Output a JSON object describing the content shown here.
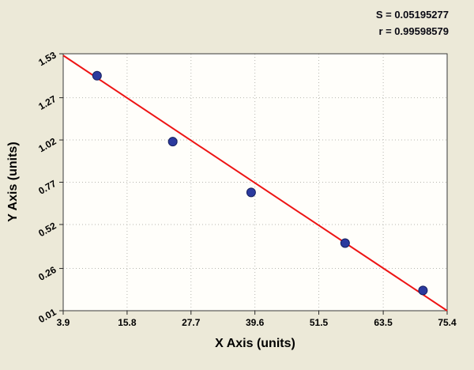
{
  "stats": {
    "s_label": "S = 0.05195277",
    "r_label": "r = 0.99598579"
  },
  "chart_data": {
    "type": "scatter",
    "title": "",
    "xlabel": "X Axis (units)",
    "ylabel": "Y Axis (units)",
    "x": [
      10.2,
      24.3,
      38.9,
      56.4,
      70.9
    ],
    "y": [
      1.4,
      1.01,
      0.71,
      0.41,
      0.13
    ],
    "xlim": [
      3.9,
      75.4
    ],
    "ylim": [
      0.01,
      1.53
    ],
    "xtick_values": [
      3.9,
      15.8,
      27.7,
      39.6,
      51.5,
      63.5,
      75.4
    ],
    "xtick_labels": [
      "3.9",
      "15.8",
      "27.7",
      "39.6",
      "51.5",
      "63.5",
      "75.4"
    ],
    "ytick_values": [
      0.01,
      0.26,
      0.52,
      0.77,
      1.02,
      1.27,
      1.53
    ],
    "ytick_labels": [
      "0.01",
      "0.26",
      "0.52",
      "0.77",
      "1.02",
      "1.27",
      "1.53"
    ],
    "grid": true,
    "plot_bg": "#fffefa",
    "page_bg": "#ece9d8",
    "border_color": "#3a3a3a",
    "grid_color": "#b7b7b0",
    "point_color": "#2b3a9e",
    "point_stroke": "#17205f",
    "trendline": {
      "x1": 3.9,
      "y1": 1.52,
      "x2": 75.4,
      "y2": 0.01,
      "color": "#ee1414"
    },
    "annotations": [
      "S = 0.05195277",
      "r = 0.99598579"
    ]
  }
}
